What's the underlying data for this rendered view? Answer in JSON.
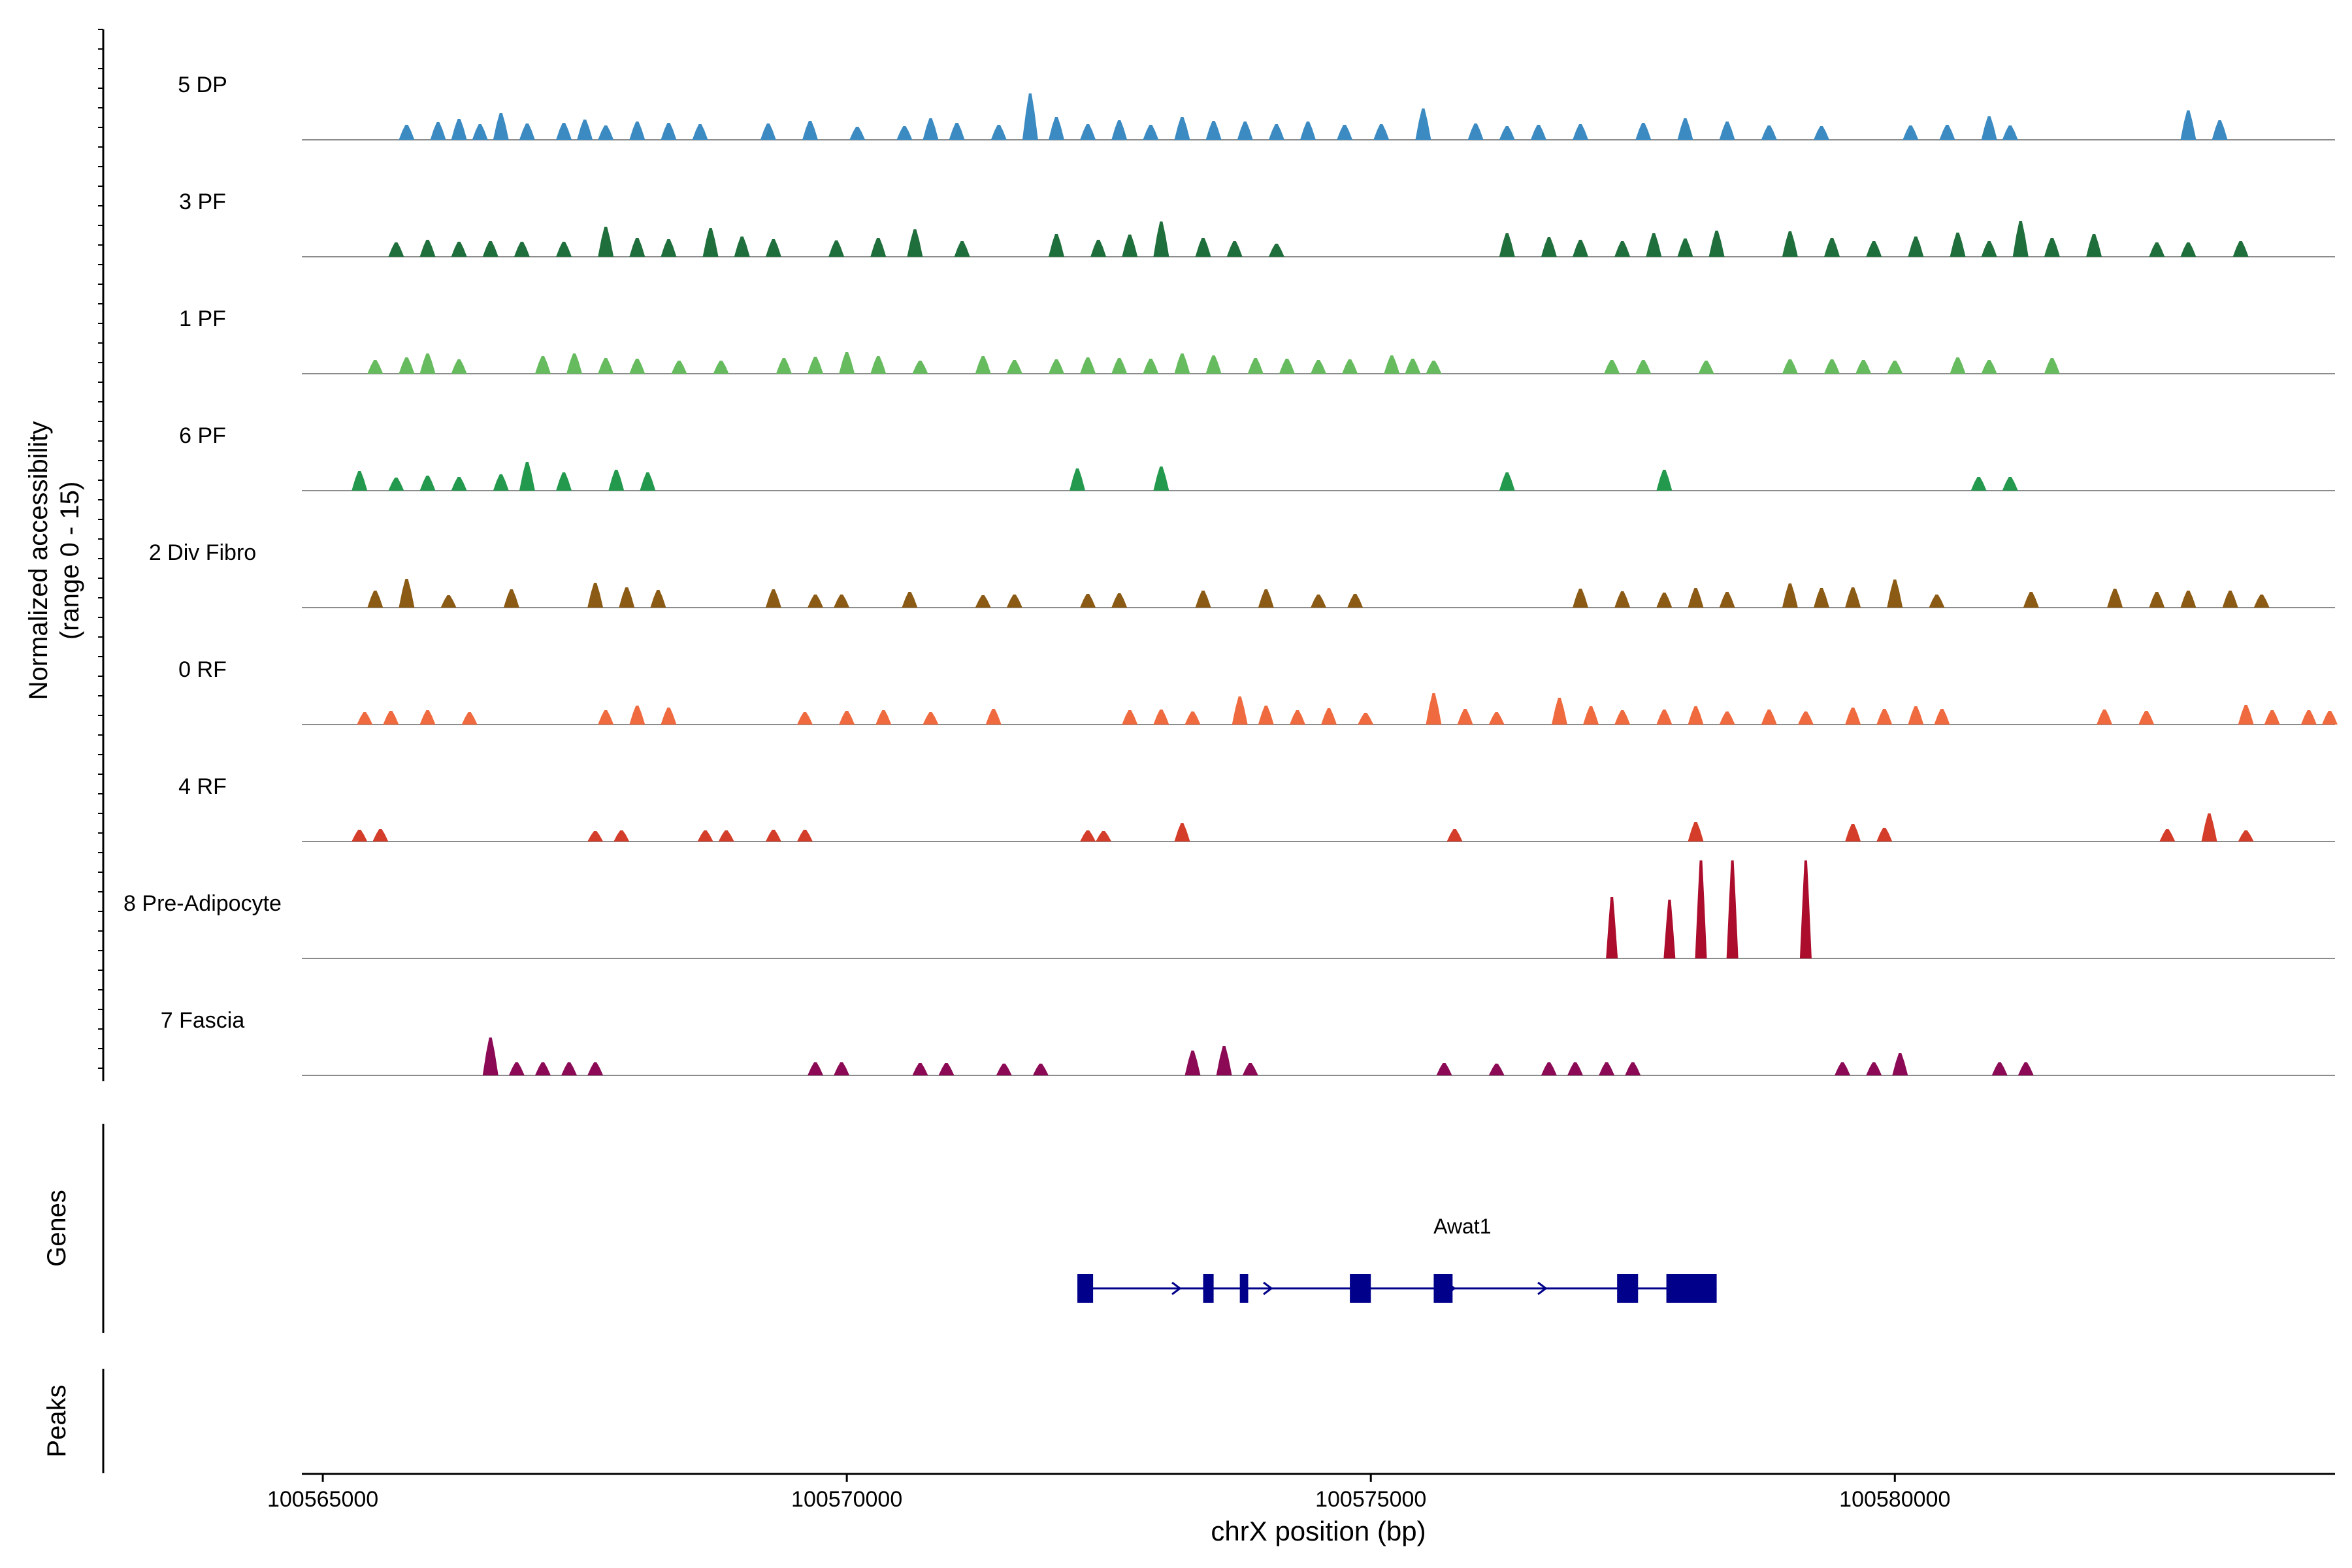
{
  "chart_data": {
    "type": "area",
    "title": "",
    "ylabel": [
      "Normalized accessibility",
      "(range 0 - 15)"
    ],
    "xlabel": "chrX position (bp)",
    "xlim": [
      100564800,
      100584200
    ],
    "ylim": [
      0,
      15
    ],
    "x_ticks": [
      100565000,
      100570000,
      100575000,
      100580000
    ],
    "x_tick_labels": [
      "100565000",
      "100570000",
      "100575000",
      "100580000"
    ],
    "panel_labels": {
      "genes": "Genes",
      "peaks": "Peaks"
    },
    "tracks": [
      {
        "name": "5 DP",
        "color": "#3b8bc2",
        "peaks": [
          [
            100565800,
            2.3
          ],
          [
            100566100,
            2.7
          ],
          [
            100566300,
            3.2
          ],
          [
            100566500,
            2.4
          ],
          [
            100566700,
            4.1
          ],
          [
            100566950,
            2.5
          ],
          [
            100567300,
            2.6
          ],
          [
            100567500,
            3.1
          ],
          [
            100567700,
            2.2
          ],
          [
            100568000,
            2.8
          ],
          [
            100568300,
            2.6
          ],
          [
            100568600,
            2.4
          ],
          [
            100569250,
            2.5
          ],
          [
            100569650,
            2.9
          ],
          [
            100570100,
            2.0
          ],
          [
            100570550,
            2.1
          ],
          [
            100570800,
            3.3
          ],
          [
            100571050,
            2.6
          ],
          [
            100571450,
            2.3
          ],
          [
            100571750,
            7.1
          ],
          [
            100572000,
            3.5
          ],
          [
            100572300,
            2.4
          ],
          [
            100572600,
            3.0
          ],
          [
            100572900,
            2.3
          ],
          [
            100573200,
            3.5
          ],
          [
            100573500,
            2.9
          ],
          [
            100573800,
            2.8
          ],
          [
            100574100,
            2.4
          ],
          [
            100574400,
            2.8
          ],
          [
            100574750,
            2.3
          ],
          [
            100575100,
            2.4
          ],
          [
            100575500,
            4.8
          ],
          [
            100576000,
            2.5
          ],
          [
            100576300,
            2.1
          ],
          [
            100576600,
            2.3
          ],
          [
            100577000,
            2.4
          ],
          [
            100577600,
            2.6
          ],
          [
            100578000,
            3.3
          ],
          [
            100578400,
            2.8
          ],
          [
            100578800,
            2.2
          ],
          [
            100579300,
            2.1
          ],
          [
            100580150,
            2.2
          ],
          [
            100580500,
            2.3
          ],
          [
            100580900,
            3.6
          ],
          [
            100581100,
            2.2
          ],
          [
            100582800,
            4.5
          ],
          [
            100583100,
            3.0
          ]
        ]
      },
      {
        "name": "3 PF",
        "color": "#1f6f3c",
        "peaks": [
          [
            100565700,
            2.2
          ],
          [
            100566000,
            2.6
          ],
          [
            100566300,
            2.3
          ],
          [
            100566600,
            2.4
          ],
          [
            100566900,
            2.3
          ],
          [
            100567300,
            2.3
          ],
          [
            100567700,
            4.6
          ],
          [
            100568000,
            2.9
          ],
          [
            100568300,
            2.7
          ],
          [
            100568700,
            4.4
          ],
          [
            100569000,
            3.1
          ],
          [
            100569300,
            2.7
          ],
          [
            100569900,
            2.5
          ],
          [
            100570300,
            2.9
          ],
          [
            100570650,
            4.2
          ],
          [
            100571100,
            2.4
          ],
          [
            100572000,
            3.5
          ],
          [
            100572400,
            2.6
          ],
          [
            100572700,
            3.4
          ],
          [
            100573000,
            5.4
          ],
          [
            100573400,
            2.9
          ],
          [
            100573700,
            2.4
          ],
          [
            100574100,
            2.0
          ],
          [
            100576300,
            3.6
          ],
          [
            100576700,
            3.0
          ],
          [
            100577000,
            2.6
          ],
          [
            100577400,
            2.4
          ],
          [
            100577700,
            3.6
          ],
          [
            100578000,
            2.8
          ],
          [
            100578300,
            4.0
          ],
          [
            100579000,
            3.9
          ],
          [
            100579400,
            2.9
          ],
          [
            100579800,
            2.4
          ],
          [
            100580200,
            3.1
          ],
          [
            100580600,
            3.7
          ],
          [
            100580900,
            2.4
          ],
          [
            100581200,
            5.5
          ],
          [
            100581500,
            2.9
          ],
          [
            100581900,
            3.5
          ],
          [
            100582500,
            2.2
          ],
          [
            100582800,
            2.2
          ],
          [
            100583300,
            2.4
          ]
        ]
      },
      {
        "name": "1 PF",
        "color": "#66bb5e",
        "peaks": [
          [
            100565500,
            2.1
          ],
          [
            100565800,
            2.5
          ],
          [
            100566000,
            3.1
          ],
          [
            100566300,
            2.2
          ],
          [
            100567100,
            2.7
          ],
          [
            100567400,
            3.1
          ],
          [
            100567700,
            2.4
          ],
          [
            100568000,
            2.3
          ],
          [
            100568400,
            2.0
          ],
          [
            100568800,
            2.0
          ],
          [
            100569400,
            2.4
          ],
          [
            100569700,
            2.6
          ],
          [
            100570000,
            3.3
          ],
          [
            100570300,
            2.7
          ],
          [
            100570700,
            2.0
          ],
          [
            100571300,
            2.7
          ],
          [
            100571600,
            2.1
          ],
          [
            100572000,
            2.2
          ],
          [
            100572300,
            2.5
          ],
          [
            100572600,
            2.4
          ],
          [
            100572900,
            2.3
          ],
          [
            100573200,
            3.1
          ],
          [
            100573500,
            2.8
          ],
          [
            100573900,
            2.4
          ],
          [
            100574200,
            2.3
          ],
          [
            100574500,
            2.1
          ],
          [
            100574800,
            2.2
          ],
          [
            100575200,
            2.8
          ],
          [
            100575400,
            2.3
          ],
          [
            100575600,
            2.0
          ],
          [
            100577300,
            2.1
          ],
          [
            100577600,
            2.1
          ],
          [
            100578200,
            2.0
          ],
          [
            100579000,
            2.2
          ],
          [
            100579400,
            2.2
          ],
          [
            100579700,
            2.1
          ],
          [
            100580000,
            2.0
          ],
          [
            100580600,
            2.5
          ],
          [
            100580900,
            2.1
          ],
          [
            100581500,
            2.4
          ]
        ]
      },
      {
        "name": "6 PF",
        "color": "#23994d",
        "peaks": [
          [
            100565350,
            3.0
          ],
          [
            100565700,
            2.0
          ],
          [
            100566000,
            2.3
          ],
          [
            100566300,
            2.1
          ],
          [
            100566700,
            2.5
          ],
          [
            100566950,
            4.4
          ],
          [
            100567300,
            2.8
          ],
          [
            100567800,
            3.2
          ],
          [
            100568100,
            2.8
          ],
          [
            100572200,
            3.4
          ],
          [
            100573000,
            3.7
          ],
          [
            100576300,
            2.8
          ],
          [
            100577800,
            3.2
          ],
          [
            100580800,
            2.1
          ],
          [
            100581100,
            2.1
          ]
        ]
      },
      {
        "name": "2 Div Fibro",
        "color": "#8b5a14",
        "peaks": [
          [
            100565500,
            2.6
          ],
          [
            100565800,
            4.4
          ],
          [
            100566200,
            1.9
          ],
          [
            100566800,
            2.8
          ],
          [
            100567600,
            3.8
          ],
          [
            100567900,
            3.1
          ],
          [
            100568200,
            2.7
          ],
          [
            100569300,
            2.8
          ],
          [
            100569700,
            2.0
          ],
          [
            100569950,
            2.0
          ],
          [
            100570600,
            2.4
          ],
          [
            100571300,
            1.9
          ],
          [
            100571600,
            2.0
          ],
          [
            100572300,
            2.1
          ],
          [
            100572600,
            2.2
          ],
          [
            100573400,
            2.6
          ],
          [
            100574000,
            2.8
          ],
          [
            100574500,
            2.0
          ],
          [
            100574850,
            2.1
          ],
          [
            100577000,
            2.9
          ],
          [
            100577400,
            2.5
          ],
          [
            100577800,
            2.3
          ],
          [
            100578100,
            3.0
          ],
          [
            100578400,
            2.4
          ],
          [
            100579000,
            3.7
          ],
          [
            100579300,
            3.0
          ],
          [
            100579600,
            3.1
          ],
          [
            100580000,
            4.3
          ],
          [
            100580400,
            2.0
          ],
          [
            100581300,
            2.4
          ],
          [
            100582100,
            2.9
          ],
          [
            100582500,
            2.4
          ],
          [
            100582800,
            2.6
          ],
          [
            100583200,
            2.6
          ],
          [
            100583500,
            2.0
          ]
        ]
      },
      {
        "name": "0 RF",
        "color": "#ef6b3f",
        "peaks": [
          [
            100565400,
            1.9
          ],
          [
            100565650,
            2.1
          ],
          [
            100566000,
            2.2
          ],
          [
            100566400,
            1.9
          ],
          [
            100567700,
            2.2
          ],
          [
            100568000,
            2.9
          ],
          [
            100568300,
            2.6
          ],
          [
            100569600,
            1.9
          ],
          [
            100570000,
            2.1
          ],
          [
            100570350,
            2.2
          ],
          [
            100570800,
            1.9
          ],
          [
            100571400,
            2.4
          ],
          [
            100572700,
            2.2
          ],
          [
            100573000,
            2.3
          ],
          [
            100573300,
            2.0
          ],
          [
            100573750,
            4.3
          ],
          [
            100574000,
            2.9
          ],
          [
            100574300,
            2.2
          ],
          [
            100574600,
            2.5
          ],
          [
            100574950,
            1.8
          ],
          [
            100575600,
            4.8
          ],
          [
            100575900,
            2.4
          ],
          [
            100576200,
            1.9
          ],
          [
            100576800,
            4.1
          ],
          [
            100577100,
            2.8
          ],
          [
            100577400,
            2.2
          ],
          [
            100577800,
            2.3
          ],
          [
            100578100,
            2.8
          ],
          [
            100578400,
            2.0
          ],
          [
            100578800,
            2.3
          ],
          [
            100579150,
            2.0
          ],
          [
            100579600,
            2.6
          ],
          [
            100579900,
            2.4
          ],
          [
            100580200,
            2.8
          ],
          [
            100580450,
            2.4
          ],
          [
            100582000,
            2.3
          ],
          [
            100582400,
            2.1
          ],
          [
            100583350,
            3.0
          ],
          [
            100583600,
            2.2
          ],
          [
            100583950,
            2.2
          ],
          [
            100584150,
            2.1
          ]
        ]
      },
      {
        "name": "4 RF",
        "color": "#d33d2a",
        "peaks": [
          [
            100565350,
            1.8
          ],
          [
            100565550,
            1.9
          ],
          [
            100567600,
            1.6
          ],
          [
            100567850,
            1.7
          ],
          [
            100568650,
            1.7
          ],
          [
            100568850,
            1.7
          ],
          [
            100569300,
            1.8
          ],
          [
            100569600,
            1.8
          ],
          [
            100572300,
            1.7
          ],
          [
            100572450,
            1.6
          ],
          [
            100573200,
            2.8
          ],
          [
            100575800,
            1.9
          ],
          [
            100578100,
            3.0
          ],
          [
            100579600,
            2.7
          ],
          [
            100579900,
            2.1
          ],
          [
            100582600,
            1.9
          ],
          [
            100583000,
            4.3
          ],
          [
            100583350,
            1.7
          ]
        ]
      },
      {
        "name": "8 Pre-Adipocyte",
        "color": "#ad0d2c",
        "peaks": [
          [
            100577300,
            9.4
          ],
          [
            100577850,
            9.0
          ],
          [
            100578150,
            15.0
          ],
          [
            100578450,
            15.0
          ],
          [
            100579150,
            15.0
          ]
        ]
      },
      {
        "name": "7 Fascia",
        "color": "#8c0a55",
        "peaks": [
          [
            100566600,
            5.8
          ],
          [
            100566850,
            2.0
          ],
          [
            100567100,
            2.0
          ],
          [
            100567350,
            2.0
          ],
          [
            100567600,
            2.0
          ],
          [
            100569700,
            2.0
          ],
          [
            100569950,
            2.0
          ],
          [
            100570700,
            1.9
          ],
          [
            100570950,
            1.9
          ],
          [
            100571500,
            1.8
          ],
          [
            100571850,
            1.8
          ],
          [
            100573300,
            3.8
          ],
          [
            100573600,
            4.5
          ],
          [
            100573850,
            1.9
          ],
          [
            100575700,
            1.9
          ],
          [
            100576200,
            1.8
          ],
          [
            100576700,
            2.0
          ],
          [
            100576950,
            2.0
          ],
          [
            100577250,
            2.0
          ],
          [
            100577500,
            2.0
          ],
          [
            100579500,
            2.0
          ],
          [
            100579800,
            2.0
          ],
          [
            100580050,
            3.4
          ],
          [
            100581000,
            2.0
          ],
          [
            100581250,
            2.0
          ]
        ]
      }
    ],
    "genes": [
      {
        "name": "Awat1",
        "strand": "+",
        "start": 100572200,
        "end": 100578300,
        "exons": [
          [
            100572200,
            100572350
          ],
          [
            100573400,
            100573500
          ],
          [
            100573750,
            100573830
          ],
          [
            100574800,
            100575000
          ],
          [
            100575600,
            100575780
          ],
          [
            100577350,
            100577550
          ],
          [
            100577820,
            100578300
          ]
        ],
        "color": "#00008b"
      }
    ]
  }
}
